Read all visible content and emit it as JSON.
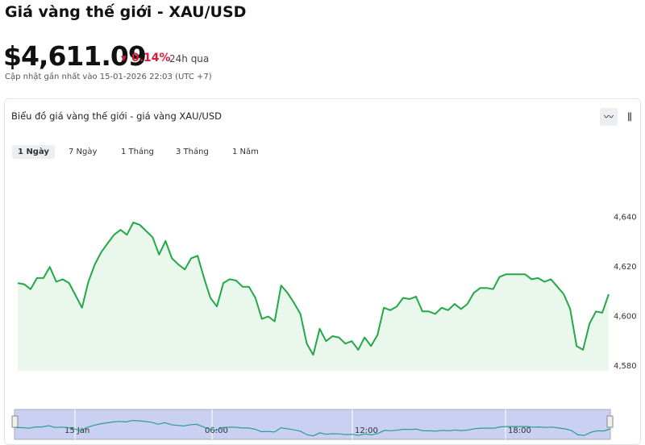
{
  "header": {
    "title": "Giá vàng thế giới - XAU/USD",
    "price": "$4,611.09",
    "change": "0.14%",
    "period": "24h qua",
    "updated": "Cập nhật gần nhất vào 15-01-2026 22:03 (UTC +7)"
  },
  "card": {
    "title": "Biểu đồ giá vàng thế giới - giá vàng XAU/USD",
    "tabs": [
      "1 Ngày",
      "7 Ngày",
      "1 Tháng",
      "3 Tháng",
      "1 Năm"
    ]
  },
  "navigator": {
    "labels": [
      "15 Jan",
      "06:00",
      "12:00",
      "18:00"
    ]
  },
  "chart_data": {
    "type": "line",
    "color": "#22a845",
    "grid": false,
    "values": [
      4613.5,
      4613,
      4611,
      4615.5,
      4615.5,
      4620,
      4614,
      4615,
      4613.5,
      4608.5,
      4603.5,
      4614,
      4621,
      4626,
      4629.5,
      4633,
      4635,
      4633,
      4638,
      4637,
      4634.5,
      4632,
      4625,
      4630.5,
      4623.5,
      4621,
      4619,
      4623.5,
      4624.5,
      4615.5,
      4607.5,
      4604,
      4613.5,
      4615,
      4614.5,
      4612,
      4612,
      4607.5,
      4599,
      4600,
      4598,
      4612.5,
      4609.5,
      4605.5,
      4601,
      4589,
      4584.5,
      4595,
      4590,
      4592,
      4591.5,
      4589,
      4590,
      4586.5,
      4591.5,
      4588,
      4592.5,
      4603.5,
      4602.5,
      4604,
      4607.5,
      4607,
      4608,
      4602,
      4602,
      4601,
      4603.5,
      4602.5,
      4605,
      4603,
      4605,
      4609.5,
      4611.5,
      4611.5,
      4611,
      4616,
      4617,
      4617,
      4617,
      4617,
      4615,
      4615.5,
      4614,
      4615,
      4612,
      4609,
      4603,
      4588,
      4586.5,
      4597,
      4602,
      4601.5,
      4609
    ],
    "ylim": [
      4578,
      4665
    ],
    "yticks": [
      {
        "value": 4580,
        "label": "4,580"
      },
      {
        "value": 4600,
        "label": "4,600"
      },
      {
        "value": 4620,
        "label": "4,620"
      },
      {
        "value": 4640,
        "label": "4,640"
      }
    ]
  }
}
